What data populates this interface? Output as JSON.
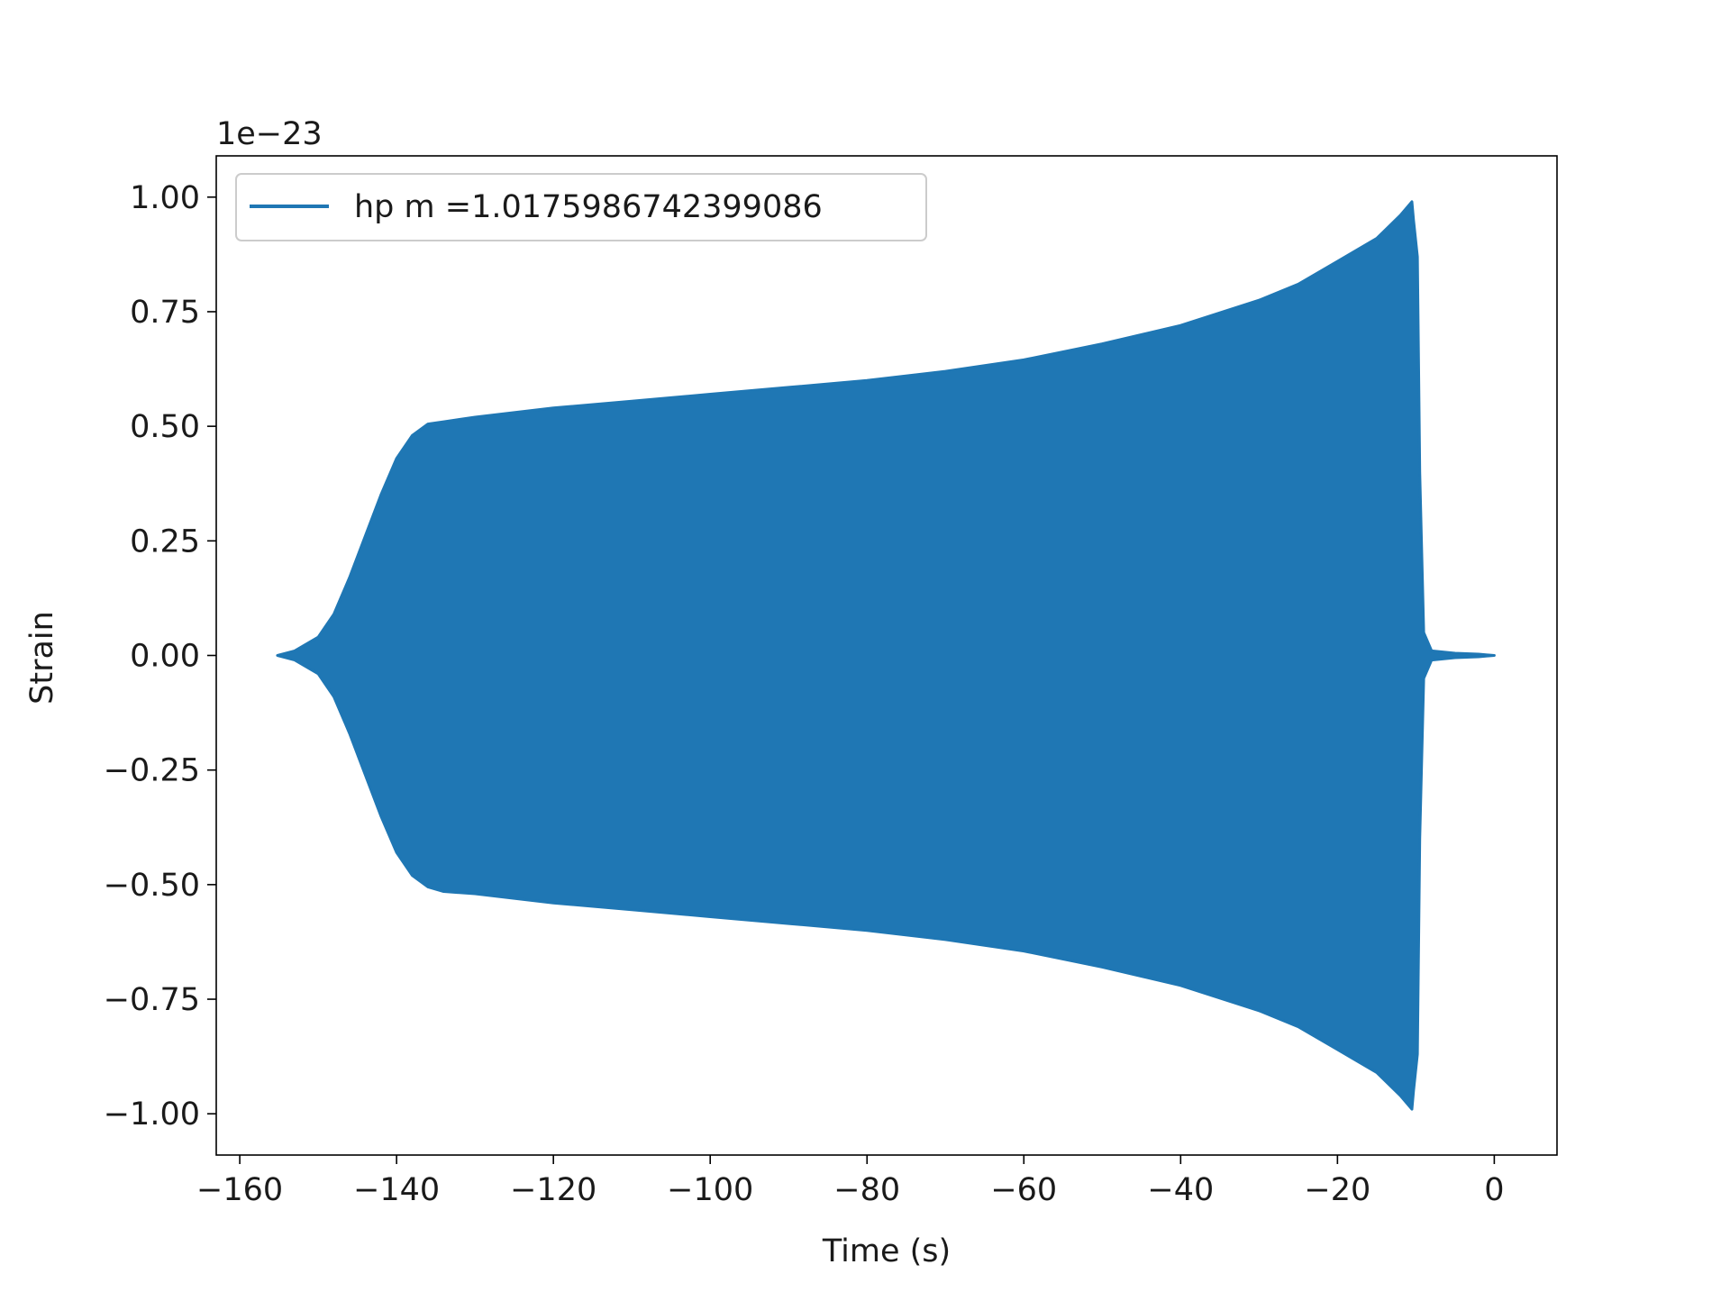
{
  "chart_data": {
    "type": "line",
    "title": "",
    "xlabel": "Time (s)",
    "ylabel": "Strain",
    "y_offset_text": "1e−23",
    "xlim": [
      -163,
      8
    ],
    "ylim": [
      -1.09,
      1.09
    ],
    "x_ticks": [
      -160,
      -140,
      -120,
      -100,
      -80,
      -60,
      -40,
      -20,
      0
    ],
    "x_tick_labels": [
      "−160",
      "−140",
      "−120",
      "−100",
      "−80",
      "−60",
      "−40",
      "−20",
      "0"
    ],
    "y_ticks": [
      1.0,
      0.75,
      0.5,
      0.25,
      0.0,
      -0.25,
      -0.5,
      -0.75,
      -1.0
    ],
    "y_tick_labels": [
      "1.00",
      "0.75",
      "0.50",
      "0.25",
      "0.00",
      "−0.25",
      "−0.50",
      "−0.75",
      "−1.00"
    ],
    "grid": false,
    "legend": {
      "placement": "upper-left",
      "entries": [
        {
          "label": "hp m =1.0175986742399086",
          "color": "#1f77b4"
        }
      ]
    },
    "series": [
      {
        "name": "hp m =1.0175986742399086",
        "color": "#1f77b4",
        "style": "dense oscillation; band between upper and lower envelope",
        "envelope": {
          "t": [
            -155.2,
            -153,
            -150,
            -148,
            -146,
            -144,
            -142,
            -140,
            -138,
            -136,
            -134,
            -130,
            -120,
            -110,
            -100,
            -90,
            -80,
            -70,
            -60,
            -50,
            -40,
            -30,
            -25,
            -20,
            -15,
            -12,
            -10.5,
            -10.3,
            -9.8,
            -9.5,
            -9,
            -8,
            -5,
            -2,
            0
          ],
          "upper": [
            0.0,
            0.01,
            0.04,
            0.09,
            0.17,
            0.26,
            0.35,
            0.43,
            0.48,
            0.505,
            0.51,
            0.52,
            0.54,
            0.555,
            0.57,
            0.585,
            0.6,
            0.62,
            0.645,
            0.68,
            0.72,
            0.775,
            0.81,
            0.86,
            0.91,
            0.96,
            0.99,
            0.95,
            0.87,
            0.4,
            0.05,
            0.01,
            0.005,
            0.003,
            0.0
          ],
          "lower": [
            0.0,
            -0.01,
            -0.04,
            -0.09,
            -0.17,
            -0.26,
            -0.35,
            -0.43,
            -0.48,
            -0.505,
            -0.515,
            -0.52,
            -0.54,
            -0.555,
            -0.57,
            -0.585,
            -0.6,
            -0.62,
            -0.645,
            -0.68,
            -0.72,
            -0.775,
            -0.81,
            -0.86,
            -0.91,
            -0.96,
            -0.99,
            -0.95,
            -0.87,
            -0.4,
            -0.05,
            -0.01,
            -0.005,
            -0.003,
            0.0
          ]
        }
      }
    ]
  }
}
